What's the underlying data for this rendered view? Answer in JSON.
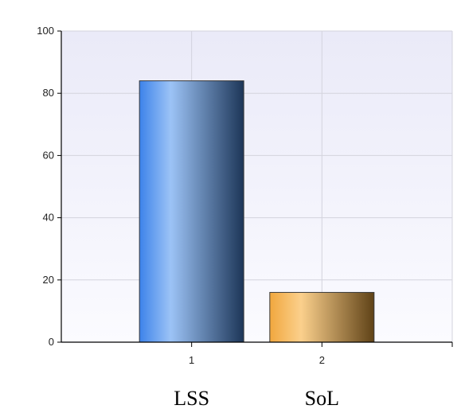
{
  "chart_data": {
    "type": "bar",
    "categories": [
      "1",
      "2"
    ],
    "category_names": [
      "LSS",
      "SoL"
    ],
    "values": [
      84,
      16
    ],
    "ylim": [
      0,
      100
    ],
    "yticks": [
      0,
      20,
      40,
      60,
      80,
      100
    ],
    "grid": true,
    "title": "",
    "xlabel": "",
    "ylabel": "",
    "bar_colors": [
      {
        "left": "#3d83ea",
        "mid": "#9cc3f6",
        "right": "#1d3658"
      },
      {
        "left": "#f1a73e",
        "mid": "#fbd08c",
        "right": "#5f4217"
      }
    ],
    "plot_background_top": "#eaeaf8",
    "plot_background_bottom": "#fbfbff"
  }
}
